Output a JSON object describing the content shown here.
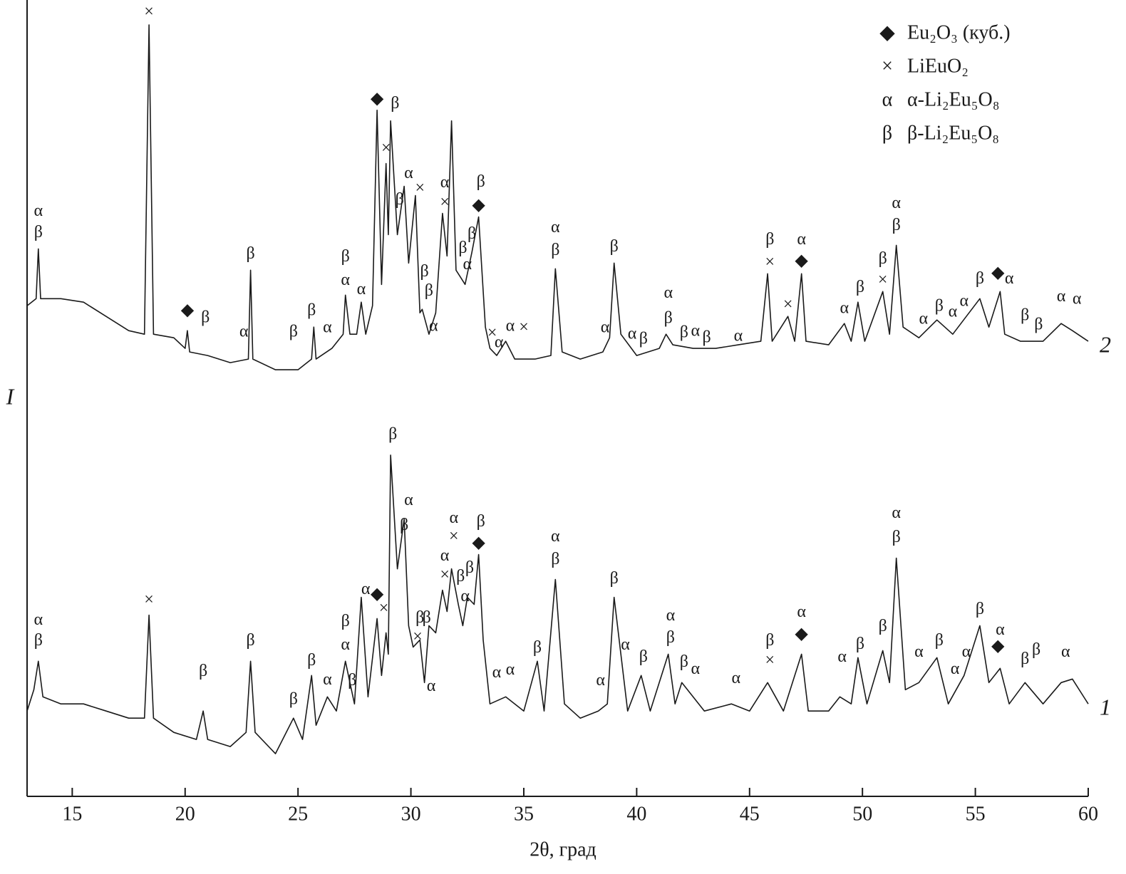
{
  "chart_data": {
    "type": "line",
    "xlabel": "2θ, град",
    "ylabel": "I",
    "xlim": [
      13,
      60
    ],
    "ylim": [
      0,
      1120
    ],
    "xticks": [
      15,
      20,
      25,
      30,
      35,
      40,
      45,
      50,
      55,
      60
    ],
    "legend": {
      "position": "upper right",
      "entries": [
        {
          "symbol": "◆",
          "label": "Eu₂O₃ (куб.)"
        },
        {
          "symbol": "×",
          "label": "LiEuO₂"
        },
        {
          "symbol": "α",
          "label": "α-Li₂Eu₅O₈"
        },
        {
          "symbol": "β",
          "label": "β-Li₂Eu₅O₈"
        }
      ]
    },
    "series": [
      {
        "name": "2",
        "color": "#1a1a1a",
        "x": [
          13.0,
          13.4,
          13.5,
          13.6,
          14.5,
          15.5,
          16.5,
          17.5,
          18.2,
          18.4,
          18.6,
          19.5,
          20.0,
          20.1,
          20.2,
          21.0,
          22.0,
          22.8,
          22.9,
          23.0,
          24.0,
          25.0,
          25.6,
          25.7,
          25.8,
          26.5,
          27.0,
          27.1,
          27.3,
          27.6,
          27.8,
          28.0,
          28.3,
          28.5,
          28.7,
          28.9,
          29.0,
          29.1,
          29.4,
          29.7,
          29.9,
          30.2,
          30.4,
          30.5,
          30.8,
          31.1,
          31.4,
          31.6,
          31.8,
          32.0,
          32.2,
          32.4,
          32.7,
          33.0,
          33.3,
          33.5,
          33.8,
          34.2,
          34.6,
          35.5,
          36.2,
          36.4,
          36.7,
          37.5,
          38.5,
          38.8,
          39.0,
          39.3,
          40.0,
          41.0,
          41.3,
          41.6,
          42.5,
          43.5,
          44.5,
          45.5,
          45.8,
          46.0,
          46.7,
          47.0,
          47.3,
          47.5,
          48.5,
          49.2,
          49.5,
          49.8,
          50.1,
          50.9,
          51.2,
          51.5,
          51.8,
          52.5,
          53.3,
          54.0,
          55.2,
          55.6,
          56.1,
          56.3,
          57.0,
          58.0,
          58.8,
          59.3,
          60.0
        ],
        "values": [
          690,
          700,
          770,
          700,
          700,
          695,
          675,
          655,
          650,
          1085,
          650,
          645,
          630,
          655,
          625,
          620,
          610,
          615,
          740,
          615,
          600,
          600,
          615,
          660,
          615,
          630,
          650,
          705,
          650,
          650,
          695,
          650,
          690,
          965,
          720,
          890,
          790,
          950,
          790,
          858,
          750,
          845,
          680,
          685,
          650,
          680,
          820,
          760,
          950,
          740,
          730,
          720,
          765,
          815,
          660,
          630,
          620,
          640,
          615,
          615,
          620,
          742,
          625,
          615,
          625,
          645,
          750,
          650,
          620,
          630,
          650,
          635,
          630,
          630,
          635,
          640,
          735,
          640,
          675,
          640,
          735,
          640,
          635,
          665,
          640,
          695,
          640,
          710,
          650,
          775,
          660,
          645,
          670,
          650,
          700,
          660,
          710,
          650,
          640,
          640,
          665,
          655,
          640
        ],
        "annotations": [
          {
            "x": 13.5,
            "y": 822,
            "text": "α"
          },
          {
            "x": 13.5,
            "y": 792,
            "text": "β"
          },
          {
            "x": 18.4,
            "y": 1102,
            "text": "×"
          },
          {
            "x": 20.1,
            "y": 682,
            "text": "◆"
          },
          {
            "x": 20.9,
            "y": 672,
            "text": "β"
          },
          {
            "x": 22.6,
            "y": 652,
            "text": "α"
          },
          {
            "x": 22.9,
            "y": 762,
            "text": "β"
          },
          {
            "x": 24.8,
            "y": 652,
            "text": "β"
          },
          {
            "x": 25.6,
            "y": 682,
            "text": "β"
          },
          {
            "x": 26.3,
            "y": 658,
            "text": "α"
          },
          {
            "x": 27.1,
            "y": 758,
            "text": "β"
          },
          {
            "x": 27.1,
            "y": 725,
            "text": "α"
          },
          {
            "x": 27.8,
            "y": 712,
            "text": "α"
          },
          {
            "x": 28.5,
            "y": 980,
            "text": "◆"
          },
          {
            "x": 29.3,
            "y": 973,
            "text": "β"
          },
          {
            "x": 28.9,
            "y": 910,
            "text": "×"
          },
          {
            "x": 29.9,
            "y": 875,
            "text": "α"
          },
          {
            "x": 29.5,
            "y": 838,
            "text": "β"
          },
          {
            "x": 30.4,
            "y": 854,
            "text": "×"
          },
          {
            "x": 31.5,
            "y": 862,
            "text": "α"
          },
          {
            "x": 31.5,
            "y": 834,
            "text": "×"
          },
          {
            "x": 30.6,
            "y": 737,
            "text": "β"
          },
          {
            "x": 30.8,
            "y": 710,
            "text": "β"
          },
          {
            "x": 31.0,
            "y": 660,
            "text": "α"
          },
          {
            "x": 33.1,
            "y": 863,
            "text": "β"
          },
          {
            "x": 33.0,
            "y": 830,
            "text": "◆"
          },
          {
            "x": 32.3,
            "y": 770,
            "text": "β"
          },
          {
            "x": 32.7,
            "y": 790,
            "text": "β"
          },
          {
            "x": 32.5,
            "y": 747,
            "text": "α"
          },
          {
            "x": 33.6,
            "y": 650,
            "text": "×"
          },
          {
            "x": 33.9,
            "y": 637,
            "text": "α"
          },
          {
            "x": 34.4,
            "y": 660,
            "text": "α"
          },
          {
            "x": 35.0,
            "y": 658,
            "text": "×"
          },
          {
            "x": 36.4,
            "y": 799,
            "text": "α"
          },
          {
            "x": 36.4,
            "y": 767,
            "text": "β"
          },
          {
            "x": 39.0,
            "y": 772,
            "text": "β"
          },
          {
            "x": 38.6,
            "y": 658,
            "text": "α"
          },
          {
            "x": 39.8,
            "y": 649,
            "text": "α"
          },
          {
            "x": 40.3,
            "y": 642,
            "text": "β"
          },
          {
            "x": 41.4,
            "y": 707,
            "text": "α"
          },
          {
            "x": 41.4,
            "y": 671,
            "text": "β"
          },
          {
            "x": 42.1,
            "y": 651,
            "text": "β"
          },
          {
            "x": 42.6,
            "y": 653,
            "text": "α"
          },
          {
            "x": 43.1,
            "y": 644,
            "text": "β"
          },
          {
            "x": 44.5,
            "y": 646,
            "text": "α"
          },
          {
            "x": 45.9,
            "y": 782,
            "text": "β"
          },
          {
            "x": 45.9,
            "y": 750,
            "text": "×"
          },
          {
            "x": 46.7,
            "y": 690,
            "text": "×"
          },
          {
            "x": 47.3,
            "y": 782,
            "text": "α"
          },
          {
            "x": 47.3,
            "y": 752,
            "text": "◆"
          },
          {
            "x": 49.2,
            "y": 685,
            "text": "α"
          },
          {
            "x": 49.9,
            "y": 715,
            "text": "β"
          },
          {
            "x": 50.9,
            "y": 755,
            "text": "β"
          },
          {
            "x": 50.9,
            "y": 725,
            "text": "×"
          },
          {
            "x": 51.5,
            "y": 833,
            "text": "α"
          },
          {
            "x": 51.5,
            "y": 802,
            "text": "β"
          },
          {
            "x": 52.7,
            "y": 670,
            "text": "α"
          },
          {
            "x": 53.4,
            "y": 688,
            "text": "β"
          },
          {
            "x": 54.0,
            "y": 680,
            "text": "α"
          },
          {
            "x": 54.5,
            "y": 695,
            "text": "α"
          },
          {
            "x": 55.2,
            "y": 727,
            "text": "β"
          },
          {
            "x": 56.0,
            "y": 735,
            "text": "◆"
          },
          {
            "x": 56.5,
            "y": 727,
            "text": "α"
          },
          {
            "x": 57.2,
            "y": 675,
            "text": "β"
          },
          {
            "x": 57.8,
            "y": 662,
            "text": "β"
          },
          {
            "x": 58.8,
            "y": 702,
            "text": "α"
          },
          {
            "x": 59.5,
            "y": 698,
            "text": "α"
          }
        ]
      },
      {
        "name": "1",
        "color": "#1a1a1a",
        "x": [
          13.0,
          13.3,
          13.5,
          13.7,
          14.5,
          15.5,
          16.5,
          17.5,
          18.2,
          18.4,
          18.6,
          19.5,
          20.5,
          20.8,
          21.0,
          22.0,
          22.7,
          22.9,
          23.1,
          24.0,
          24.8,
          25.2,
          25.6,
          25.8,
          26.3,
          26.7,
          27.1,
          27.3,
          27.5,
          27.8,
          28.1,
          28.5,
          28.7,
          28.9,
          29.0,
          29.1,
          29.4,
          29.7,
          29.9,
          30.1,
          30.4,
          30.6,
          30.8,
          31.1,
          31.4,
          31.6,
          31.8,
          32.1,
          32.3,
          32.5,
          32.8,
          33.0,
          33.2,
          33.5,
          34.2,
          35.0,
          35.6,
          35.9,
          36.4,
          36.8,
          37.5,
          38.3,
          38.7,
          39.0,
          39.3,
          39.6,
          40.2,
          40.6,
          41.4,
          41.7,
          42.0,
          43.0,
          44.2,
          45.0,
          45.8,
          46.5,
          47.3,
          47.6,
          48.5,
          49.0,
          49.5,
          49.8,
          50.2,
          50.9,
          51.2,
          51.5,
          51.9,
          52.5,
          53.3,
          53.8,
          54.5,
          55.2,
          55.6,
          56.1,
          56.5,
          57.2,
          58.0,
          58.8,
          59.3,
          60.0
        ],
        "values": [
          120,
          150,
          190,
          140,
          130,
          130,
          120,
          110,
          110,
          255,
          110,
          90,
          80,
          120,
          80,
          70,
          90,
          190,
          90,
          60,
          110,
          80,
          170,
          100,
          140,
          120,
          190,
          160,
          130,
          280,
          140,
          250,
          170,
          230,
          200,
          480,
          320,
          390,
          240,
          210,
          220,
          160,
          240,
          230,
          290,
          260,
          320,
          270,
          240,
          280,
          270,
          340,
          220,
          130,
          140,
          120,
          190,
          120,
          305,
          130,
          110,
          120,
          130,
          280,
          200,
          120,
          170,
          120,
          200,
          130,
          160,
          120,
          130,
          120,
          160,
          120,
          200,
          120,
          120,
          140,
          130,
          195,
          130,
          205,
          160,
          335,
          150,
          160,
          195,
          130,
          170,
          240,
          160,
          180,
          130,
          160,
          130,
          160,
          165,
          130
        ],
        "annotations": [
          {
            "x": 13.5,
            "y": 247,
            "text": "α"
          },
          {
            "x": 13.5,
            "y": 218,
            "text": "β"
          },
          {
            "x": 18.4,
            "y": 275,
            "text": "×"
          },
          {
            "x": 20.8,
            "y": 175,
            "text": "β"
          },
          {
            "x": 22.9,
            "y": 218,
            "text": "β"
          },
          {
            "x": 24.8,
            "y": 135,
            "text": "β"
          },
          {
            "x": 25.6,
            "y": 190,
            "text": "β"
          },
          {
            "x": 26.3,
            "y": 163,
            "text": "α"
          },
          {
            "x": 27.1,
            "y": 245,
            "text": "β"
          },
          {
            "x": 27.1,
            "y": 212,
            "text": "α"
          },
          {
            "x": 27.4,
            "y": 162,
            "text": "β"
          },
          {
            "x": 28.0,
            "y": 290,
            "text": "α"
          },
          {
            "x": 28.5,
            "y": 283,
            "text": "◆"
          },
          {
            "x": 28.8,
            "y": 263,
            "text": "×"
          },
          {
            "x": 29.2,
            "y": 508,
            "text": "β"
          },
          {
            "x": 29.9,
            "y": 415,
            "text": "α"
          },
          {
            "x": 29.7,
            "y": 380,
            "text": "β"
          },
          {
            "x": 30.4,
            "y": 250,
            "text": "β"
          },
          {
            "x": 30.3,
            "y": 223,
            "text": "×"
          },
          {
            "x": 30.7,
            "y": 250,
            "text": "β"
          },
          {
            "x": 30.9,
            "y": 154,
            "text": "α"
          },
          {
            "x": 31.9,
            "y": 390,
            "text": "α"
          },
          {
            "x": 31.9,
            "y": 364,
            "text": "×"
          },
          {
            "x": 31.5,
            "y": 337,
            "text": "α"
          },
          {
            "x": 31.5,
            "y": 310,
            "text": "×"
          },
          {
            "x": 32.2,
            "y": 308,
            "text": "β"
          },
          {
            "x": 32.6,
            "y": 320,
            "text": "β"
          },
          {
            "x": 32.4,
            "y": 280,
            "text": "α"
          },
          {
            "x": 33.1,
            "y": 385,
            "text": "β"
          },
          {
            "x": 33.0,
            "y": 355,
            "text": "◆"
          },
          {
            "x": 33.8,
            "y": 173,
            "text": "α"
          },
          {
            "x": 34.4,
            "y": 177,
            "text": "α"
          },
          {
            "x": 35.6,
            "y": 208,
            "text": "β"
          },
          {
            "x": 36.4,
            "y": 364,
            "text": "α"
          },
          {
            "x": 36.4,
            "y": 332,
            "text": "β"
          },
          {
            "x": 39.0,
            "y": 305,
            "text": "β"
          },
          {
            "x": 38.4,
            "y": 162,
            "text": "α"
          },
          {
            "x": 39.5,
            "y": 212,
            "text": "α"
          },
          {
            "x": 40.3,
            "y": 195,
            "text": "β"
          },
          {
            "x": 41.5,
            "y": 253,
            "text": "α"
          },
          {
            "x": 41.5,
            "y": 222,
            "text": "β"
          },
          {
            "x": 42.1,
            "y": 188,
            "text": "β"
          },
          {
            "x": 42.6,
            "y": 178,
            "text": "α"
          },
          {
            "x": 44.4,
            "y": 165,
            "text": "α"
          },
          {
            "x": 45.9,
            "y": 218,
            "text": "β"
          },
          {
            "x": 45.9,
            "y": 190,
            "text": "×"
          },
          {
            "x": 47.3,
            "y": 258,
            "text": "α"
          },
          {
            "x": 47.3,
            "y": 227,
            "text": "◆"
          },
          {
            "x": 49.1,
            "y": 195,
            "text": "α"
          },
          {
            "x": 49.9,
            "y": 213,
            "text": "β"
          },
          {
            "x": 50.9,
            "y": 238,
            "text": "β"
          },
          {
            "x": 51.5,
            "y": 397,
            "text": "α"
          },
          {
            "x": 51.5,
            "y": 363,
            "text": "β"
          },
          {
            "x": 52.5,
            "y": 202,
            "text": "α"
          },
          {
            "x": 53.4,
            "y": 218,
            "text": "β"
          },
          {
            "x": 54.1,
            "y": 178,
            "text": "α"
          },
          {
            "x": 54.6,
            "y": 202,
            "text": "α"
          },
          {
            "x": 55.2,
            "y": 262,
            "text": "β"
          },
          {
            "x": 56.1,
            "y": 233,
            "text": "α"
          },
          {
            "x": 56.0,
            "y": 210,
            "text": "◆"
          },
          {
            "x": 57.2,
            "y": 192,
            "text": "β"
          },
          {
            "x": 57.7,
            "y": 205,
            "text": "β"
          },
          {
            "x": 59.0,
            "y": 202,
            "text": "α"
          }
        ]
      }
    ]
  }
}
